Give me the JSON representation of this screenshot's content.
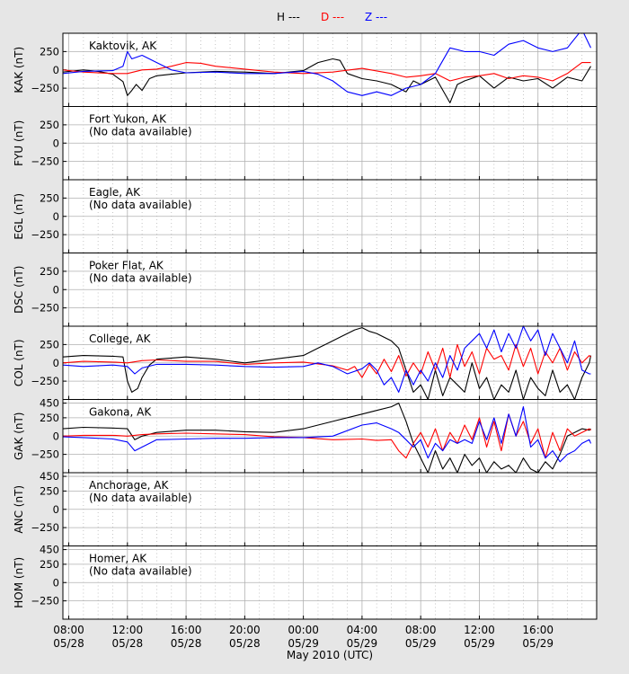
{
  "legend": {
    "items": [
      {
        "label": "H ---",
        "color": "#000000"
      },
      {
        "label": "D ---",
        "color": "#ff0000"
      },
      {
        "label": "Z ---",
        "color": "#0000ff"
      }
    ]
  },
  "xlabel": "May 2010 (UTC)",
  "x_ticks": [
    {
      "hour": 8,
      "time": "08:00",
      "date": "05/28"
    },
    {
      "hour": 12,
      "time": "12:00",
      "date": "05/28"
    },
    {
      "hour": 16,
      "time": "16:00",
      "date": "05/28"
    },
    {
      "hour": 20,
      "time": "20:00",
      "date": "05/28"
    },
    {
      "hour": 24,
      "time": "00:00",
      "date": "05/29"
    },
    {
      "hour": 28,
      "time": "04:00",
      "date": "05/29"
    },
    {
      "hour": 32,
      "time": "08:00",
      "date": "05/29"
    },
    {
      "hour": 36,
      "time": "12:00",
      "date": "05/29"
    },
    {
      "hour": 40,
      "time": "16:00",
      "date": "05/29"
    }
  ],
  "chart_data": {
    "type": "line",
    "x_unit": "hours since 2010-05-28 00:00 UTC",
    "xlim": [
      7.6,
      44
    ],
    "grid": true,
    "legend_position": "top-center",
    "panels": [
      {
        "station": "Kaktovik, AK",
        "ylabel": "KAK (nT)",
        "note": "",
        "ylim": [
          -500,
          500
        ],
        "yticks": [
          250,
          0,
          -250
        ],
        "series": [
          {
            "name": "H",
            "color": "#000000",
            "x": [
              7.6,
              9,
              10,
              11,
              11.7,
              12,
              12.3,
              12.6,
              13,
              13.5,
              14,
              15,
              16,
              18,
              20,
              22,
              24,
              25,
              26,
              26.5,
              27,
              28,
              29,
              30,
              31,
              31.5,
              32,
              33,
              34,
              34.5,
              35,
              36,
              37,
              38,
              39,
              40,
              41,
              42,
              43,
              43.6
            ],
            "y": [
              -30,
              0,
              -20,
              -60,
              -160,
              -350,
              -280,
              -200,
              -280,
              -120,
              -80,
              -60,
              -40,
              -20,
              -30,
              -50,
              -10,
              100,
              150,
              130,
              -50,
              -120,
              -150,
              -200,
              -300,
              -150,
              -200,
              -100,
              -450,
              -200,
              -150,
              -80,
              -250,
              -100,
              -150,
              -120,
              -250,
              -100,
              -150,
              50
            ]
          },
          {
            "name": "D",
            "color": "#ff0000",
            "x": [
              7.6,
              9,
              11,
              12,
              13,
              14,
              15,
              16,
              17,
              18,
              20,
              22,
              24,
              26,
              28,
              30,
              31,
              32,
              33,
              34,
              35,
              36,
              37,
              38,
              39,
              40,
              41,
              42,
              43,
              43.6
            ],
            "y": [
              0,
              -30,
              -50,
              -50,
              0,
              10,
              50,
              100,
              90,
              50,
              10,
              -30,
              -50,
              -30,
              20,
              -50,
              -100,
              -80,
              -50,
              -150,
              -100,
              -80,
              -50,
              -120,
              -80,
              -100,
              -150,
              -50,
              100,
              100
            ]
          },
          {
            "name": "Z",
            "color": "#0000ff",
            "x": [
              7.6,
              9,
              11,
              11.7,
              12,
              12.3,
              13,
              14,
              15,
              16,
              18,
              20,
              22,
              24,
              25,
              26,
              27,
              28,
              29,
              30,
              31,
              32,
              33,
              34,
              35,
              36,
              37,
              38,
              39,
              40,
              41,
              42,
              43,
              43.6
            ],
            "y": [
              -50,
              -20,
              -10,
              50,
              250,
              150,
              200,
              100,
              0,
              -40,
              -30,
              -50,
              -50,
              -20,
              -60,
              -150,
              -300,
              -350,
              -300,
              -350,
              -250,
              -200,
              -50,
              300,
              250,
              250,
              200,
              350,
              400,
              300,
              250,
              300,
              550,
              300
            ]
          }
        ]
      },
      {
        "station": "Fort Yukon, AK",
        "ylabel": "FYU (nT)",
        "note": "(No data available)",
        "ylim": [
          -500,
          500
        ],
        "yticks": [
          250,
          0,
          -250
        ],
        "series": []
      },
      {
        "station": "Eagle, AK",
        "ylabel": "EGL (nT)",
        "note": "(No data available)",
        "ylim": [
          -500,
          500
        ],
        "yticks": [
          250,
          0,
          -250
        ],
        "series": []
      },
      {
        "station": "Poker Flat, AK",
        "ylabel": "DSC (nT)",
        "note": "(No data available)",
        "ylim": [
          -500,
          500
        ],
        "yticks": [
          250,
          0,
          -250
        ],
        "series": []
      },
      {
        "station": "College, AK",
        "ylabel": "COL (nT)",
        "note": "",
        "ylim": [
          -500,
          500
        ],
        "yticks": [
          250,
          0,
          -250
        ],
        "series": [
          {
            "name": "H",
            "color": "#000000",
            "x": [
              7.6,
              9,
              11,
              11.7,
              12,
              12.3,
              12.7,
              13,
              13.5,
              14,
              16,
              18,
              20,
              22,
              24,
              25,
              26,
              27,
              27.5,
              28,
              28.5,
              29,
              29.5,
              30,
              30.5,
              31,
              31.5,
              32,
              32.5,
              33,
              33.5,
              34,
              34.5,
              35,
              35.5,
              36,
              36.5,
              37,
              37.5,
              38,
              38.5,
              39,
              39.5,
              40,
              40.5,
              41,
              41.5,
              42,
              42.5,
              43,
              43.5,
              43.6
            ],
            "y": [
              80,
              100,
              90,
              80,
              -250,
              -400,
              -350,
              -200,
              -30,
              50,
              80,
              50,
              0,
              50,
              100,
              200,
              300,
              400,
              450,
              480,
              430,
              400,
              350,
              300,
              200,
              -100,
              -400,
              -300,
              -500,
              -100,
              -450,
              -200,
              -300,
              -400,
              0,
              -350,
              -200,
              -500,
              -300,
              -400,
              -100,
              -500,
              -200,
              -350,
              -450,
              -100,
              -400,
              -300,
              -500,
              -200,
              0,
              100
            ]
          },
          {
            "name": "D",
            "color": "#ff0000",
            "x": [
              7.6,
              9,
              11,
              12,
              13,
              14,
              16,
              18,
              20,
              22,
              24,
              26,
              27,
              27.5,
              28,
              28.5,
              29,
              29.5,
              30,
              30.5,
              31,
              31.5,
              32,
              32.5,
              33,
              33.5,
              34,
              34.5,
              35,
              35.5,
              36,
              36.5,
              37,
              37.5,
              38,
              38.5,
              39,
              39.5,
              40,
              40.5,
              41,
              41.5,
              42,
              42.5,
              43,
              43.5,
              43.6
            ],
            "y": [
              0,
              20,
              10,
              0,
              30,
              40,
              20,
              20,
              -20,
              0,
              10,
              -40,
              -100,
              -50,
              -200,
              -20,
              -150,
              50,
              -120,
              100,
              -180,
              0,
              -150,
              150,
              -100,
              200,
              -200,
              250,
              -50,
              150,
              -150,
              200,
              50,
              100,
              -100,
              250,
              -50,
              200,
              -150,
              150,
              0,
              200,
              -100,
              150,
              0,
              100,
              80
            ]
          },
          {
            "name": "Z",
            "color": "#0000ff",
            "x": [
              7.6,
              9,
              11,
              12,
              12.5,
              13,
              14,
              16,
              18,
              20,
              22,
              24,
              25,
              26,
              27,
              28,
              28.5,
              29,
              29.5,
              30,
              30.5,
              31,
              31.5,
              32,
              32.5,
              33,
              33.5,
              34,
              34.5,
              35,
              35.5,
              36,
              36.5,
              37,
              37.5,
              38,
              38.5,
              39,
              39.5,
              40,
              40.5,
              41,
              41.5,
              42,
              42.5,
              43,
              43.5,
              43.6
            ],
            "y": [
              -30,
              -50,
              -30,
              -50,
              -150,
              -70,
              -20,
              -20,
              -30,
              -50,
              -60,
              -50,
              0,
              -50,
              -150,
              -80,
              0,
              -100,
              -300,
              -200,
              -400,
              -100,
              -300,
              -100,
              -250,
              0,
              -200,
              100,
              -100,
              200,
              300,
              400,
              200,
              450,
              150,
              400,
              200,
              500,
              300,
              450,
              100,
              400,
              200,
              0,
              300,
              -100,
              -150,
              -150
            ]
          }
        ]
      },
      {
        "station": "Gakona, AK",
        "ylabel": "GAK (nT)",
        "note": "",
        "ylim": [
          -500,
          500
        ],
        "yticks": [
          450,
          250,
          0,
          -250
        ],
        "series": [
          {
            "name": "H",
            "color": "#000000",
            "x": [
              7.6,
              9,
              11,
              12,
              12.5,
              13,
              14,
              16,
              18,
              20,
              22,
              24,
              26,
              28,
              29,
              30,
              30.5,
              31,
              31.5,
              32,
              32.5,
              33,
              33.5,
              34,
              34.5,
              35,
              35.5,
              36,
              36.5,
              37,
              37.5,
              38,
              38.5,
              39,
              39.5,
              40,
              40.5,
              41,
              41.5,
              42,
              42.5,
              43,
              43.5,
              43.6
            ],
            "y": [
              100,
              120,
              110,
              100,
              -50,
              0,
              50,
              80,
              80,
              60,
              50,
              100,
              200,
              300,
              350,
              400,
              450,
              200,
              -100,
              -300,
              -500,
              -200,
              -450,
              -300,
              -500,
              -250,
              -400,
              -300,
              -500,
              -350,
              -450,
              -400,
              -500,
              -300,
              -450,
              -500,
              -350,
              -450,
              -250,
              0,
              50,
              100,
              80,
              100
            ]
          },
          {
            "name": "D",
            "color": "#ff0000",
            "x": [
              7.6,
              9,
              11,
              12,
              13,
              14,
              16,
              18,
              20,
              22,
              24,
              26,
              28,
              29,
              30,
              30.5,
              31,
              31.5,
              32,
              32.5,
              33,
              33.5,
              34,
              34.5,
              35,
              35.5,
              36,
              36.5,
              37,
              37.5,
              38,
              38.5,
              39,
              39.5,
              40,
              40.5,
              41,
              41.5,
              42,
              42.5,
              43,
              43.5,
              43.6
            ],
            "y": [
              0,
              10,
              10,
              0,
              20,
              30,
              40,
              30,
              20,
              -10,
              -20,
              -50,
              -40,
              -60,
              -50,
              -200,
              -300,
              -100,
              50,
              -150,
              100,
              -200,
              50,
              -100,
              150,
              -50,
              250,
              -150,
              200,
              -200,
              300,
              0,
              200,
              -100,
              100,
              -300,
              50,
              -200,
              100,
              0,
              50,
              100,
              80
            ]
          },
          {
            "name": "Z",
            "color": "#0000ff",
            "x": [
              7.6,
              9,
              11,
              12,
              12.5,
              13,
              14,
              16,
              18,
              20,
              22,
              24,
              26,
              28,
              29,
              30,
              30.5,
              31,
              31.5,
              32,
              32.5,
              33,
              33.5,
              34,
              34.5,
              35,
              35.5,
              36,
              36.5,
              37,
              37.5,
              38,
              38.5,
              39,
              39.5,
              40,
              40.5,
              41,
              41.5,
              42,
              42.5,
              43,
              43.5,
              43.6
            ],
            "y": [
              -10,
              -20,
              -40,
              -80,
              -200,
              -150,
              -50,
              -40,
              -30,
              -30,
              -20,
              -20,
              0,
              150,
              180,
              100,
              50,
              -50,
              -150,
              -50,
              -300,
              -100,
              -200,
              -50,
              -100,
              -50,
              -100,
              200,
              -50,
              250,
              -100,
              300,
              0,
              400,
              -150,
              -50,
              -300,
              -200,
              -350,
              -250,
              -200,
              -100,
              -50,
              -100
            ]
          }
        ]
      },
      {
        "station": "Anchorage, AK",
        "ylabel": "ANC (nT)",
        "note": "(No data available)",
        "ylim": [
          -500,
          500
        ],
        "yticks": [
          450,
          250,
          0,
          -250
        ],
        "series": []
      },
      {
        "station": "Homer, AK",
        "ylabel": "HOM (nT)",
        "note": "(No data available)",
        "ylim": [
          -500,
          500
        ],
        "yticks": [
          450,
          250,
          0,
          -250
        ],
        "series": []
      }
    ]
  }
}
